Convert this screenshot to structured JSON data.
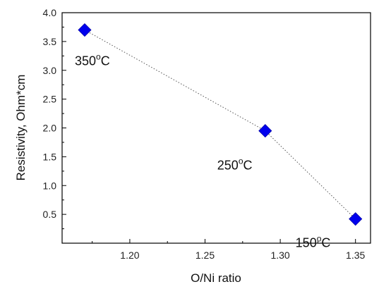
{
  "chart_data": {
    "type": "scatter",
    "title": "",
    "xlabel": "O/Ni ratio",
    "ylabel": "Resistivity, Ohm*cm",
    "xlim": [
      1.155,
      1.36
    ],
    "ylim": [
      0,
      4.0
    ],
    "x_ticks": [
      "1.20",
      "1.25",
      "1.30",
      "1.35"
    ],
    "y_ticks": [
      "0.5",
      "1.0",
      "1.5",
      "2.0",
      "2.5",
      "3.0",
      "3.5",
      "4.0"
    ],
    "grid": false,
    "marker": "diamond",
    "marker_color": "#0000ee",
    "line_style": "dotted",
    "series": [
      {
        "x": [
          1.17,
          1.29,
          1.35
        ],
        "y": [
          3.7,
          1.95,
          0.42
        ],
        "labels": [
          {
            "main": "350",
            "sup": "o",
            "unit": "C"
          },
          {
            "main": "250",
            "sup": "o",
            "unit": "C"
          },
          {
            "main": "150",
            "sup": "o",
            "unit": "C"
          }
        ]
      }
    ]
  }
}
